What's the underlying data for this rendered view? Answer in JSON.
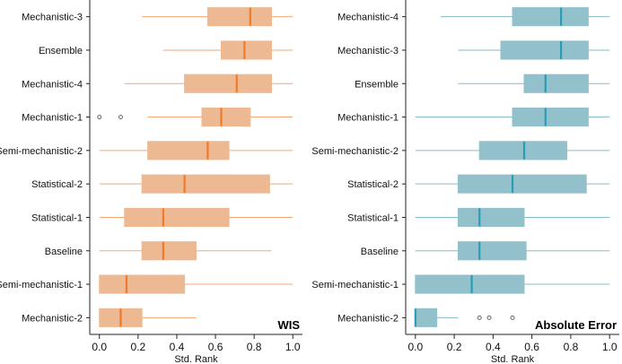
{
  "chart_data": [
    {
      "type": "boxplot",
      "title": "WIS",
      "xlabel": "Std. Rank",
      "xlim": [
        -0.05,
        1.05
      ],
      "xticks": [
        0.0,
        0.2,
        0.4,
        0.6,
        0.8,
        1.0
      ],
      "xtick_labels": [
        "0.0",
        "0.2",
        "0.4",
        "0.6",
        "0.8",
        "1.0"
      ],
      "grid": false,
      "colors": {
        "box": "#edb992",
        "line": "#f5a674",
        "median": "#f07a2a",
        "outlier": "#555555"
      },
      "categories": [
        "Mechanistic-3",
        "Ensemble",
        "Mechanistic-4",
        "Mechanistic-1",
        "Semi-mechanistic-2",
        "Statistical-2",
        "Statistical-1",
        "Baseline",
        "Semi-mechanistic-1",
        "Mechanistic-2"
      ],
      "boxes": [
        {
          "min": 0.22,
          "q1": 0.56,
          "median": 0.78,
          "q3": 0.89,
          "max": 1.0,
          "outliers": []
        },
        {
          "min": 0.33,
          "q1": 0.63,
          "median": 0.75,
          "q3": 0.89,
          "max": 1.0,
          "outliers": []
        },
        {
          "min": 0.13,
          "q1": 0.44,
          "median": 0.71,
          "q3": 0.89,
          "max": 1.0,
          "outliers": []
        },
        {
          "min": 0.25,
          "q1": 0.53,
          "median": 0.63,
          "q3": 0.78,
          "max": 1.0,
          "outliers": [
            0.0,
            0.11
          ]
        },
        {
          "min": 0.0,
          "q1": 0.25,
          "median": 0.56,
          "q3": 0.67,
          "max": 1.0,
          "outliers": []
        },
        {
          "min": 0.0,
          "q1": 0.22,
          "median": 0.44,
          "q3": 0.88,
          "max": 1.0,
          "outliers": []
        },
        {
          "min": 0.0,
          "q1": 0.13,
          "median": 0.33,
          "q3": 0.67,
          "max": 1.0,
          "outliers": []
        },
        {
          "min": 0.0,
          "q1": 0.22,
          "median": 0.33,
          "q3": 0.5,
          "max": 0.89,
          "outliers": []
        },
        {
          "min": 0.0,
          "q1": 0.0,
          "median": 0.14,
          "q3": 0.44,
          "max": 1.0,
          "outliers": []
        },
        {
          "min": 0.0,
          "q1": 0.0,
          "median": 0.11,
          "q3": 0.22,
          "max": 0.5,
          "outliers": []
        }
      ]
    },
    {
      "type": "boxplot",
      "title": "Absolute Error",
      "xlabel": "Std. Rank",
      "xlim": [
        -0.05,
        1.05
      ],
      "xticks": [
        0.0,
        0.2,
        0.4,
        0.6,
        0.8,
        1.0
      ],
      "xtick_labels": [
        "0.0",
        "0.2",
        "0.4",
        "0.6",
        "0.8",
        "1.0"
      ],
      "grid": false,
      "colors": {
        "box": "#92c1cb",
        "line": "#86bcc9",
        "median": "#2a9cb5",
        "outlier": "#555555"
      },
      "categories": [
        "Mechanistic-4",
        "Mechanistic-3",
        "Ensemble",
        "Mechanistic-1",
        "Semi-mechanistic-2",
        "Statistical-2",
        "Statistical-1",
        "Baseline",
        "Semi-mechanistic-1",
        "Mechanistic-2"
      ],
      "boxes": [
        {
          "min": 0.13,
          "q1": 0.5,
          "median": 0.75,
          "q3": 0.89,
          "max": 1.0,
          "outliers": []
        },
        {
          "min": 0.22,
          "q1": 0.44,
          "median": 0.75,
          "q3": 0.89,
          "max": 1.0,
          "outliers": []
        },
        {
          "min": 0.22,
          "q1": 0.56,
          "median": 0.67,
          "q3": 0.89,
          "max": 1.0,
          "outliers": []
        },
        {
          "min": 0.0,
          "q1": 0.5,
          "median": 0.67,
          "q3": 0.89,
          "max": 1.0,
          "outliers": []
        },
        {
          "min": 0.0,
          "q1": 0.33,
          "median": 0.56,
          "q3": 0.78,
          "max": 1.0,
          "outliers": []
        },
        {
          "min": 0.0,
          "q1": 0.22,
          "median": 0.5,
          "q3": 0.88,
          "max": 1.0,
          "outliers": []
        },
        {
          "min": 0.0,
          "q1": 0.22,
          "median": 0.33,
          "q3": 0.56,
          "max": 1.0,
          "outliers": []
        },
        {
          "min": 0.0,
          "q1": 0.22,
          "median": 0.33,
          "q3": 0.57,
          "max": 1.0,
          "outliers": []
        },
        {
          "min": 0.0,
          "q1": 0.0,
          "median": 0.29,
          "q3": 0.56,
          "max": 1.0,
          "outliers": []
        },
        {
          "min": 0.0,
          "q1": 0.0,
          "median": 0.0,
          "q3": 0.11,
          "max": 0.22,
          "outliers": [
            0.33,
            0.38,
            0.5
          ]
        }
      ]
    }
  ]
}
